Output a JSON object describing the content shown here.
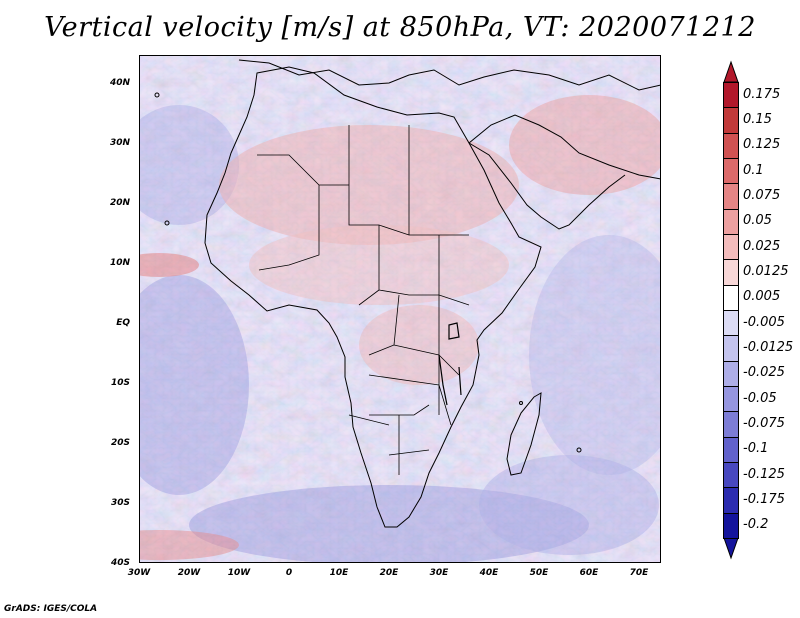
{
  "title": "Vertical velocity [m/s] at 850hPa, VT: 2020071212",
  "chart_data": {
    "type": "heatmap",
    "title": "Vertical velocity [m/s] at 850hPa, VT: 2020071212",
    "variable": "Vertical velocity",
    "units": "m/s",
    "level": "850hPa",
    "valid_time": "2020071212",
    "x_ticks": [
      "30W",
      "20W",
      "10W",
      "0",
      "10E",
      "20E",
      "30E",
      "40E",
      "50E",
      "60E",
      "70E"
    ],
    "y_ticks": [
      "40N",
      "30N",
      "20N",
      "10N",
      "EQ",
      "10S",
      "20S",
      "30S",
      "40S"
    ],
    "lon_range": [
      -30,
      75
    ],
    "lat_range": [
      -40,
      45
    ],
    "colorbar": {
      "labels": [
        "0.175",
        "0.15",
        "0.125",
        "0.1",
        "0.075",
        "0.05",
        "0.025",
        "0.0125",
        "0.005",
        "-0.005",
        "-0.0125",
        "-0.025",
        "-0.05",
        "-0.075",
        "-0.1",
        "-0.125",
        "-0.175",
        "-0.2"
      ],
      "colors": [
        "#b2182b",
        "#c23a3a",
        "#d05252",
        "#dc6a6a",
        "#e58585",
        "#eda0a0",
        "#f3bcbc",
        "#f8d7d7",
        "#ffffff",
        "#dcdcf5",
        "#c4c4ee",
        "#aeaee8",
        "#9696e0",
        "#7d7dd6",
        "#6262cc",
        "#4848c0",
        "#2c2cb0",
        "#14149c"
      ]
    }
  },
  "footer": "GrADS: IGES/COLA"
}
